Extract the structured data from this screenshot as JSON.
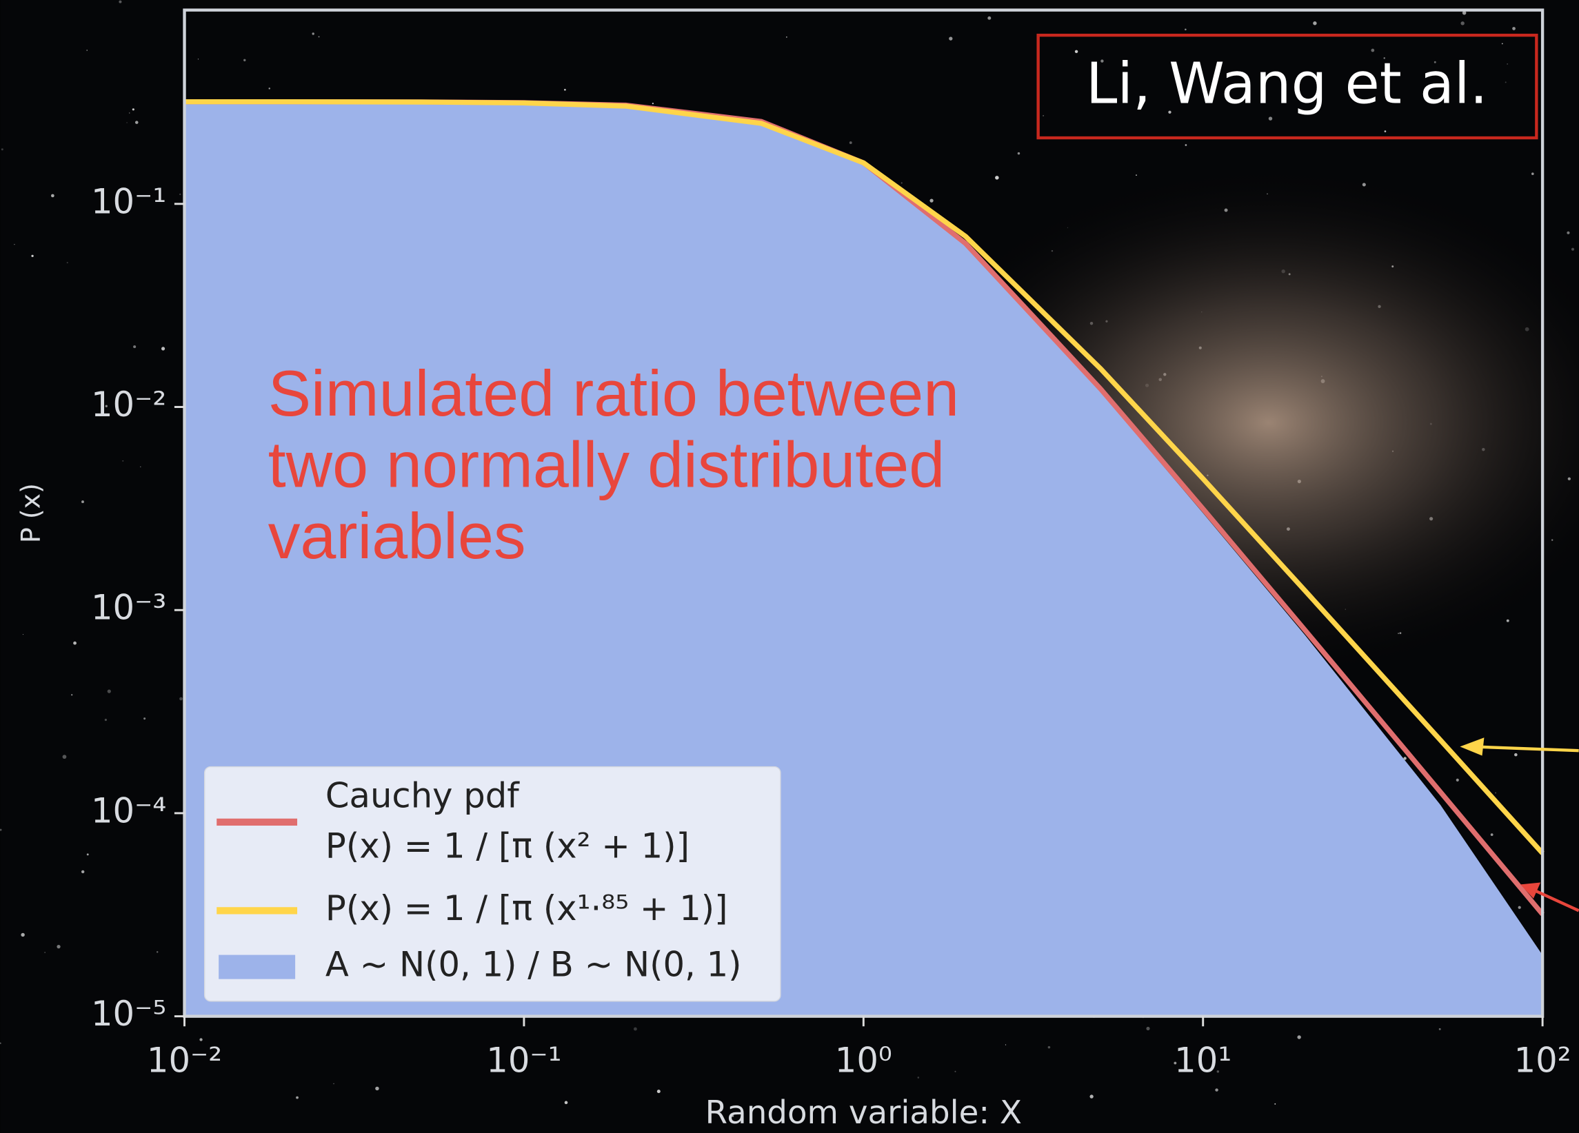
{
  "chart_data": {
    "type": "line",
    "title": "Li, Wang et al.",
    "annotation": [
      "Simulated ratio between",
      "two normally distributed",
      "variables"
    ],
    "x_label": "Random variable: X",
    "y_label": "P (x)",
    "log_x": true,
    "log_y": true,
    "xlim": [
      0.01,
      100
    ],
    "ylim": [
      1e-05,
      0.9
    ],
    "xticks": [
      {
        "value": 0.01,
        "label": "10⁻²"
      },
      {
        "value": 0.1,
        "label": "10⁻¹"
      },
      {
        "value": 1,
        "label": "10⁰"
      },
      {
        "value": 10,
        "label": "10¹"
      },
      {
        "value": 100,
        "label": "10²"
      }
    ],
    "yticks": [
      {
        "value": 1e-05,
        "label": "10⁻⁵"
      },
      {
        "value": 0.0001,
        "label": "10⁻⁴"
      },
      {
        "value": 0.001,
        "label": "10⁻³"
      },
      {
        "value": 0.01,
        "label": "10⁻²"
      },
      {
        "value": 0.1,
        "label": "10⁻¹"
      }
    ],
    "legend_position": "lower left",
    "x": [
      0.01,
      0.02,
      0.05,
      0.1,
      0.2,
      0.5,
      1,
      2,
      5,
      10,
      20,
      50,
      100
    ],
    "series": [
      {
        "name": "A ~ N(0, 1) / B ~ N(0, 1)",
        "type": "area",
        "color": "#9db3ea",
        "values": [
          0.31,
          0.31,
          0.31,
          0.31,
          0.3,
          0.25,
          0.155,
          0.062,
          0.0118,
          0.003,
          0.00075,
          0.00011,
          2e-05
        ]
      },
      {
        "name": "Cauchy pdf",
        "formula": "P(x) = 1 / [π (x² + 1)]",
        "type": "line",
        "color": "#e06e6e",
        "values": [
          0.3183,
          0.3182,
          0.3175,
          0.3152,
          0.3061,
          0.2546,
          0.1592,
          0.0637,
          0.01224,
          0.003152,
          0.000794,
          0.0001273,
          3.18e-05
        ]
      },
      {
        "name": "P(x) = 1 / [π (x¹·⁸⁵ + 1)]",
        "type": "line",
        "color": "#ffd54a",
        "values": [
          0.3183,
          0.3182,
          0.3171,
          0.3139,
          0.3029,
          0.2492,
          0.1592,
          0.0691,
          0.01541,
          0.004433,
          0.001242,
          0.000229,
          6.35e-05
        ]
      }
    ]
  }
}
